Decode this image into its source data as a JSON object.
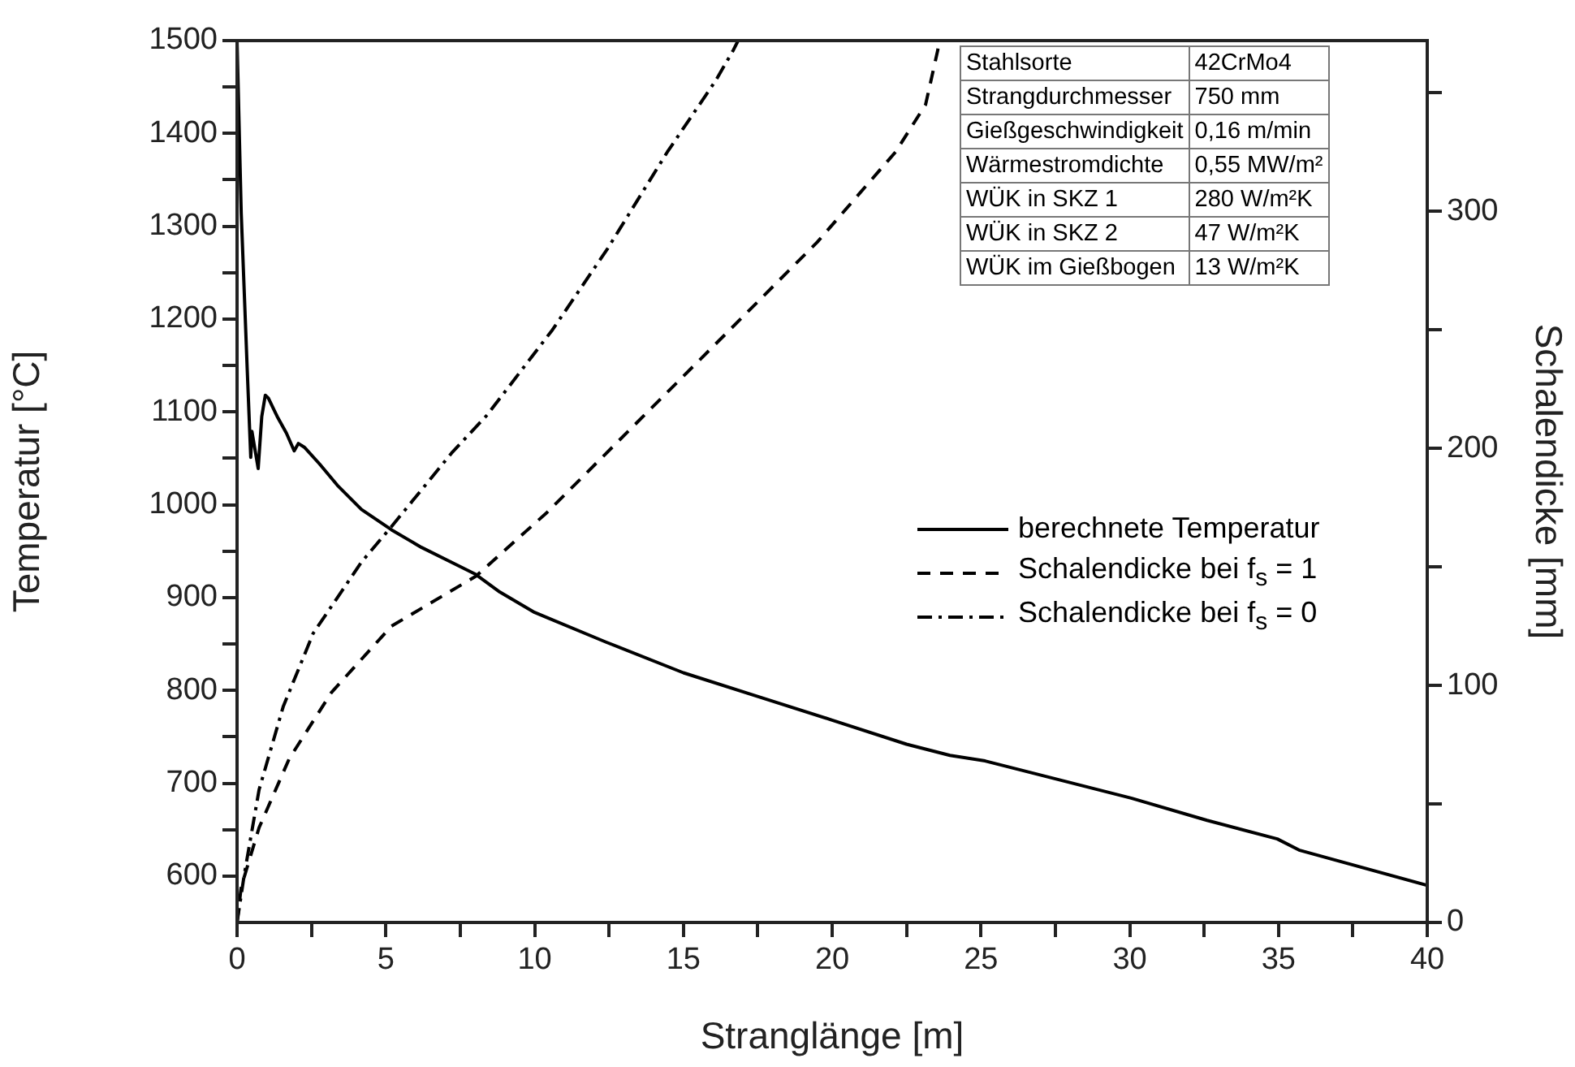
{
  "chart_data": {
    "type": "line",
    "xlabel": "Stranglänge [m]",
    "ylabel": "Temperatur [°C]",
    "y2label": "Schalendicke [mm]",
    "xlim": [
      0,
      40
    ],
    "xticks": [
      0,
      {
        "value": 2.5,
        "label": null
      },
      5,
      {
        "value": 7.5,
        "label": null
      },
      10,
      {
        "value": 12.5,
        "label": null
      },
      15,
      {
        "value": 17.5,
        "label": null
      },
      20,
      {
        "value": 22.5,
        "label": null
      },
      25,
      {
        "value": 27.5,
        "label": null
      },
      30,
      {
        "value": 32.5,
        "label": null
      },
      35,
      {
        "value": 37.5,
        "label": null
      },
      40
    ],
    "ylim": [
      550,
      1500
    ],
    "yticks": [
      600,
      {
        "value": 650,
        "label": null
      },
      700,
      {
        "value": 750,
        "label": null
      },
      800,
      {
        "value": 850,
        "label": null
      },
      900,
      {
        "value": 950,
        "label": null
      },
      1000,
      {
        "value": 1050,
        "label": null
      },
      1100,
      {
        "value": 1150,
        "label": null
      },
      1200,
      {
        "value": 1250,
        "label": null
      },
      1300,
      {
        "value": 1350,
        "label": null
      },
      1400,
      {
        "value": 1450,
        "label": null
      },
      1500
    ],
    "y2lim": [
      0,
      372
    ],
    "y2ticks": [
      0,
      {
        "value": 50,
        "label": null
      },
      100,
      {
        "value": 150,
        "label": null
      },
      200,
      {
        "value": 250,
        "label": null
      },
      300,
      {
        "value": 350,
        "label": null
      }
    ],
    "grid": false,
    "legend": "right",
    "marker": "none",
    "series": [
      {
        "name": "berechnete Temperatur",
        "color": "#000000",
        "line_style": "solid",
        "x": [
          0,
          0.14,
          0.34,
          0.46,
          0.5,
          0.71,
          0.83,
          0.95,
          1.05,
          1.35,
          1.66,
          1.92,
          2.06,
          2.26,
          2.77,
          3.37,
          4.18,
          5.19,
          6.2,
          7.21,
          8.02,
          8.83,
          10,
          12.4,
          15,
          17.45,
          20,
          22.5,
          23.96,
          25.14,
          30.05,
          32.6,
          34.96,
          35.69,
          40
        ],
        "values": [
          1500,
          1314,
          1147,
          1051,
          1079,
          1039,
          1095,
          1118,
          1115,
          1095,
          1077,
          1058,
          1066,
          1062,
          1044,
          1021,
          995,
          973,
          954,
          938,
          925,
          906,
          884,
          852,
          819,
          794,
          768,
          742,
          730,
          724,
          684,
          660,
          640,
          628,
          590
        ]
      },
      {
        "name": "Schalendicke bei f$_{s}$ = 1",
        "color": "#000000",
        "line_style": "dashed",
        "axis": "y2",
        "x": [
          0,
          0.14,
          0.74,
          1.75,
          3.17,
          5.19,
          8.02,
          10.42,
          13.45,
          16.48,
          19.5,
          22.13,
          23.14,
          23.55,
          23.58
        ],
        "values": [
          0,
          15,
          40,
          69,
          97,
          125,
          146,
          173,
          211,
          249,
          287,
          325,
          345,
          368,
          372
        ]
      },
      {
        "name": "Schalendicke bei f$_{s}$ = 0",
        "color": "#000000",
        "line_style": "dashdot",
        "axis": "y2",
        "x": [
          0,
          0.24,
          0.74,
          1.55,
          2.56,
          4.18,
          5.19,
          7.21,
          8.4,
          10.6,
          12.44,
          14.46,
          16.08,
          16.68,
          16.84
        ],
        "values": [
          0,
          20,
          56,
          91,
          122,
          152,
          167,
          198,
          214,
          250,
          284,
          325,
          355,
          368,
          372
        ]
      }
    ],
    "annotations": [
      "Stahlsorte",
      "42CrMo4",
      "Strangdurchmesser",
      "750 mm",
      "Gießgeschwindigkeit",
      "0,16 m/min",
      "Wärmestromdichte",
      "0,55 MW/m²",
      "WÜK in SKZ 1",
      "280 W/m²K",
      "WÜK in SKZ 2",
      "47 W/m²K",
      "WÜK im Gießbogen",
      "13 W/m²K"
    ]
  }
}
